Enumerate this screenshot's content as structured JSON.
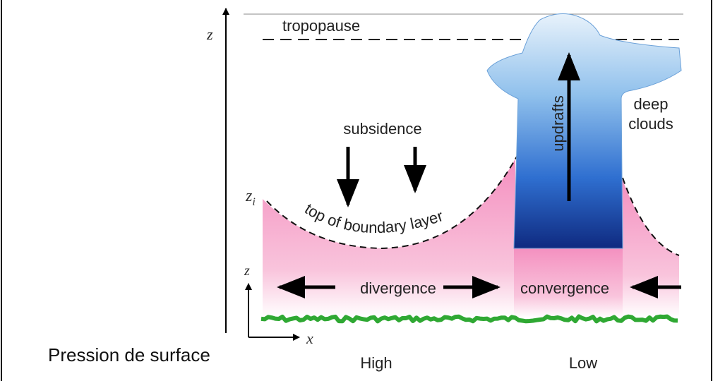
{
  "axis_z": "z",
  "tropopause": "tropopause",
  "updrafts": "updrafts",
  "deep_clouds": [
    "deep",
    "clouds"
  ],
  "subsidence": "subsidence",
  "inversion_height": {
    "base": "z",
    "sub": "i"
  },
  "boundary_layer_top": "top of boundary layer",
  "inset_axes": {
    "z": "z",
    "x": "x"
  },
  "divergence": "divergence",
  "convergence": "convergence",
  "surface_pressure_label": "Pression de surface",
  "pressure_labels": [
    "High",
    "Low"
  ]
}
